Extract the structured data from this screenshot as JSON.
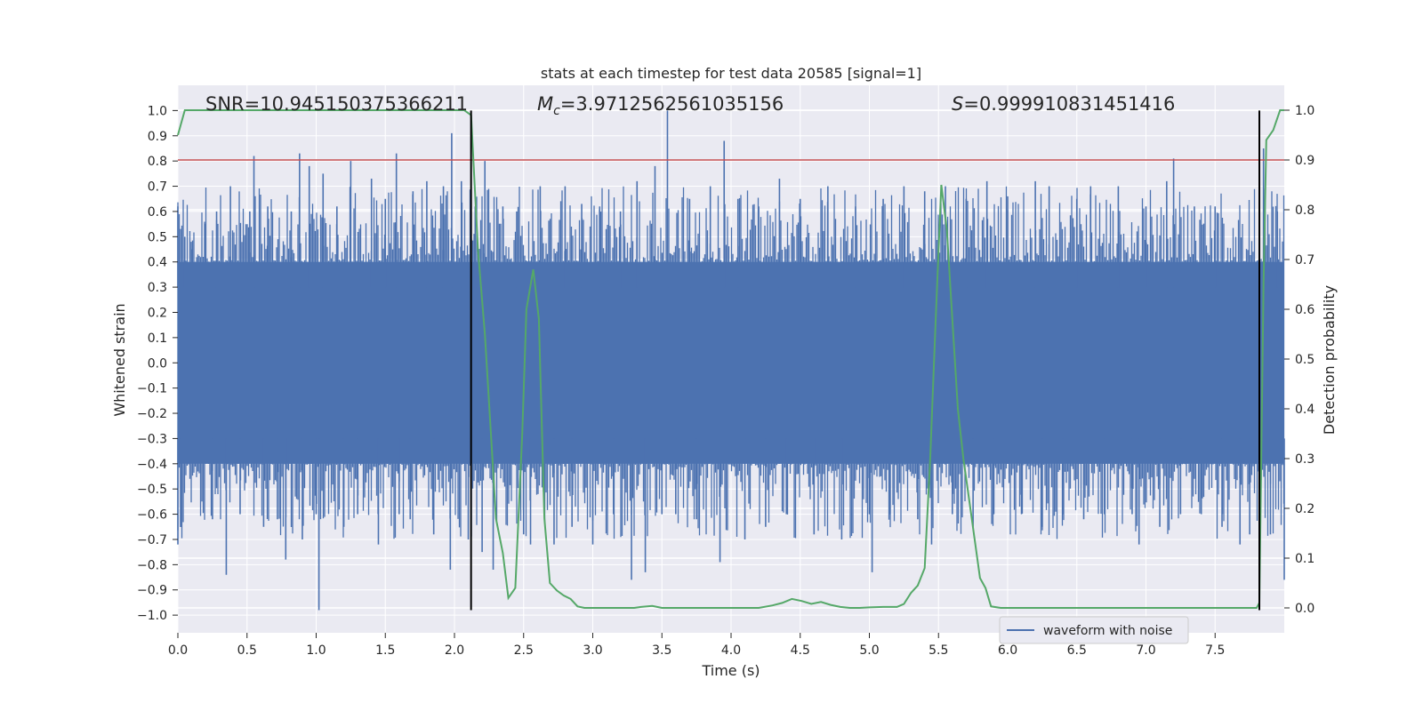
{
  "chart_data": {
    "type": "line",
    "title": "stats at each timestep for test data 20585 [signal=1]",
    "xlabel": "Time (s)",
    "ylabel": "Whitened strain",
    "y2label": "Detection probability",
    "xlim": [
      0.0,
      8.0
    ],
    "ylim": [
      -1.07,
      1.1
    ],
    "y2lim": [
      -0.05,
      1.05
    ],
    "xticks": [
      0.0,
      0.5,
      1.0,
      1.5,
      2.0,
      2.5,
      3.0,
      3.5,
      4.0,
      4.5,
      5.0,
      5.5,
      6.0,
      6.5,
      7.0,
      7.5
    ],
    "xtick_labels": [
      "0.0",
      "0.5",
      "1.0",
      "1.5",
      "2.0",
      "2.5",
      "3.0",
      "3.5",
      "4.0",
      "4.5",
      "5.0",
      "5.5",
      "6.0",
      "6.5",
      "7.0",
      "7.5"
    ],
    "yticks": [
      1.0,
      0.9,
      0.8,
      0.7,
      0.6,
      0.5,
      0.4,
      0.3,
      0.2,
      0.1,
      0.0,
      -0.1,
      -0.2,
      -0.3,
      -0.4,
      -0.5,
      -0.6,
      -0.7,
      -0.8,
      -0.9,
      -1.0
    ],
    "ytick_labels": [
      "1.0",
      "0.9",
      "0.8",
      "0.7",
      "0.6",
      "0.5",
      "0.4",
      "0.3",
      "0.2",
      "0.1",
      "0.0",
      "−0.1",
      "−0.2",
      "−0.3",
      "−0.4",
      "−0.5",
      "−0.6",
      "−0.7",
      "−0.8",
      "−0.9",
      "−1.0"
    ],
    "y2ticks": [
      1.0,
      0.9,
      0.8,
      0.7,
      0.6,
      0.5,
      0.4,
      0.3,
      0.2,
      0.1,
      0.0
    ],
    "y2tick_labels": [
      "1.0",
      "0.9",
      "0.8",
      "0.7",
      "0.6",
      "0.5",
      "0.4",
      "0.3",
      "0.2",
      "0.1",
      "0.0"
    ],
    "annotations": {
      "snr": "SNR=10.945150375366211",
      "mc_symbol": "M",
      "mc_sub": "c",
      "mc_value": "=3.9712562561035156",
      "s_symbol": "S",
      "s_value": "=0.999910831451416"
    },
    "threshold": {
      "y2": 0.9,
      "color": "#c44e52"
    },
    "vlines": [
      {
        "x": 2.12,
        "ymin": -0.98,
        "ymax": 1.0,
        "color": "#000000"
      },
      {
        "x": 7.82,
        "ymin": -0.98,
        "ymax": 1.0,
        "color": "#000000"
      }
    ],
    "legend": {
      "label": "waveform with noise",
      "placement": "lower-right"
    },
    "colors": {
      "background": "#eaeaf2",
      "waveform": "#4c72b0",
      "probability": "#55a868",
      "grid": "#ffffff"
    },
    "waveform": {
      "name": "waveform with noise",
      "t_range": [
        0.0,
        8.0
      ],
      "envelope_top": 0.4,
      "envelope_bottom": -0.4,
      "spikes": [
        [
          0.0,
          0.62
        ],
        [
          0.0,
          -0.72
        ],
        [
          0.02,
          -0.65
        ],
        [
          0.05,
          0.5
        ],
        [
          0.1,
          0.45
        ],
        [
          0.2,
          0.55
        ],
        [
          0.25,
          -0.62
        ],
        [
          0.28,
          0.6
        ],
        [
          0.35,
          -0.84
        ],
        [
          0.38,
          0.7
        ],
        [
          0.45,
          -0.6
        ],
        [
          0.52,
          0.6
        ],
        [
          0.55,
          0.82
        ],
        [
          0.62,
          -0.65
        ],
        [
          0.65,
          0.62
        ],
        [
          0.72,
          -0.62
        ],
        [
          0.78,
          -0.78
        ],
        [
          0.82,
          0.6
        ],
        [
          0.88,
          0.83
        ],
        [
          0.9,
          -0.7
        ],
        [
          0.95,
          0.78
        ],
        [
          1.0,
          -0.6
        ],
        [
          1.02,
          -0.98
        ],
        [
          1.05,
          0.75
        ],
        [
          1.15,
          0.62
        ],
        [
          1.2,
          -0.65
        ],
        [
          1.25,
          0.8
        ],
        [
          1.3,
          -0.6
        ],
        [
          1.4,
          0.73
        ],
        [
          1.45,
          -0.72
        ],
        [
          1.5,
          0.65
        ],
        [
          1.58,
          0.83
        ],
        [
          1.6,
          -0.6
        ],
        [
          1.68,
          -0.62
        ],
        [
          1.7,
          0.68
        ],
        [
          1.8,
          0.72
        ],
        [
          1.85,
          -0.68
        ],
        [
          1.92,
          0.7
        ],
        [
          1.97,
          -0.82
        ],
        [
          1.98,
          0.91
        ],
        [
          2.05,
          0.72
        ],
        [
          2.1,
          -0.7
        ],
        [
          2.15,
          0.62
        ],
        [
          2.2,
          -0.75
        ],
        [
          2.22,
          0.8
        ],
        [
          2.28,
          -0.82
        ],
        [
          2.35,
          0.62
        ],
        [
          2.45,
          0.6
        ],
        [
          2.5,
          -0.68
        ],
        [
          2.55,
          -0.72
        ],
        [
          2.62,
          0.7
        ],
        [
          2.65,
          -0.6
        ],
        [
          2.72,
          -0.72
        ],
        [
          2.8,
          0.7
        ],
        [
          2.85,
          -0.65
        ],
        [
          2.92,
          0.63
        ],
        [
          3.0,
          -0.72
        ],
        [
          3.05,
          0.62
        ],
        [
          3.15,
          -0.6
        ],
        [
          3.2,
          0.6
        ],
        [
          3.28,
          -0.86
        ],
        [
          3.32,
          0.72
        ],
        [
          3.38,
          -0.83
        ],
        [
          3.45,
          0.78
        ],
        [
          3.5,
          -0.6
        ],
        [
          3.54,
          1.0
        ],
        [
          3.6,
          -0.6
        ],
        [
          3.7,
          0.65
        ],
        [
          3.75,
          -0.62
        ],
        [
          3.85,
          0.7
        ],
        [
          3.92,
          -0.79
        ],
        [
          3.95,
          0.88
        ],
        [
          4.05,
          0.65
        ],
        [
          4.1,
          -0.7
        ],
        [
          4.2,
          0.62
        ],
        [
          4.25,
          -0.65
        ],
        [
          4.35,
          0.73
        ],
        [
          4.4,
          -0.6
        ],
        [
          4.5,
          0.65
        ],
        [
          4.6,
          -0.68
        ],
        [
          4.7,
          0.7
        ],
        [
          4.8,
          -0.7
        ],
        [
          4.9,
          0.62
        ],
        [
          5.0,
          -0.6
        ],
        [
          5.02,
          -0.83
        ],
        [
          5.1,
          0.65
        ],
        [
          5.15,
          -0.6
        ],
        [
          5.25,
          0.7
        ],
        [
          5.35,
          -0.62
        ],
        [
          5.4,
          0.68
        ],
        [
          5.45,
          -0.72
        ],
        [
          5.55,
          0.7
        ],
        [
          5.6,
          -0.6
        ],
        [
          5.7,
          0.65
        ],
        [
          5.75,
          -0.65
        ],
        [
          5.85,
          0.72
        ],
        [
          5.9,
          -0.6
        ],
        [
          6.0,
          0.66
        ],
        [
          6.1,
          -0.6
        ],
        [
          6.2,
          0.72
        ],
        [
          6.25,
          -0.65
        ],
        [
          6.3,
          0.7
        ],
        [
          6.4,
          -0.6
        ],
        [
          6.5,
          0.65
        ],
        [
          6.55,
          -0.62
        ],
        [
          6.6,
          0.7
        ],
        [
          6.7,
          -0.6
        ],
        [
          6.8,
          0.7
        ],
        [
          6.9,
          -0.6
        ],
        [
          6.95,
          -0.72
        ],
        [
          7.0,
          0.62
        ],
        [
          7.1,
          -0.65
        ],
        [
          7.15,
          0.72
        ],
        [
          7.2,
          0.81
        ],
        [
          7.25,
          -0.6
        ],
        [
          7.35,
          0.62
        ],
        [
          7.4,
          -0.6
        ],
        [
          7.5,
          0.62
        ],
        [
          7.55,
          -0.65
        ],
        [
          7.68,
          -0.72
        ],
        [
          7.75,
          -0.68
        ],
        [
          7.85,
          0.85
        ],
        [
          7.9,
          -0.68
        ],
        [
          7.95,
          0.6
        ],
        [
          8.0,
          -0.86
        ]
      ]
    },
    "probability": {
      "name": "Detection probability",
      "x": [
        0.0,
        0.05,
        0.1,
        0.3,
        0.5,
        1.0,
        1.5,
        1.8,
        2.0,
        2.07,
        2.12,
        2.17,
        2.22,
        2.27,
        2.3,
        2.35,
        2.39,
        2.44,
        2.49,
        2.52,
        2.57,
        2.61,
        2.65,
        2.69,
        2.74,
        2.79,
        2.84,
        2.89,
        2.94,
        3.0,
        3.1,
        3.2,
        3.3,
        3.35,
        3.43,
        3.5,
        3.6,
        3.7,
        3.8,
        3.9,
        4.0,
        4.1,
        4.2,
        4.3,
        4.37,
        4.44,
        4.51,
        4.58,
        4.65,
        4.72,
        4.79,
        4.86,
        4.93,
        5.0,
        5.1,
        5.2,
        5.25,
        5.3,
        5.35,
        5.4,
        5.44,
        5.48,
        5.52,
        5.56,
        5.6,
        5.64,
        5.68,
        5.72,
        5.76,
        5.8,
        5.84,
        5.88,
        5.95,
        6.1,
        6.3,
        6.5,
        6.7,
        6.9,
        7.1,
        7.3,
        7.5,
        7.6,
        7.7,
        7.75,
        7.8,
        7.82,
        7.85,
        7.87,
        7.92,
        7.97,
        8.0
      ],
      "y": [
        0.95,
        1.0,
        1.0,
        1.0,
        1.0,
        1.0,
        1.0,
        1.0,
        1.0,
        1.0,
        0.99,
        0.72,
        0.55,
        0.32,
        0.18,
        0.11,
        0.02,
        0.04,
        0.35,
        0.6,
        0.68,
        0.58,
        0.18,
        0.05,
        0.035,
        0.025,
        0.018,
        0.003,
        0.0,
        0.0,
        0.0,
        0.0,
        0.0,
        0.002,
        0.004,
        0.0,
        0.0,
        0.0,
        0.0,
        0.0,
        0.0,
        0.0,
        0.0,
        0.005,
        0.01,
        0.018,
        0.014,
        0.008,
        0.012,
        0.006,
        0.002,
        0.0,
        0.0,
        0.001,
        0.002,
        0.002,
        0.008,
        0.03,
        0.045,
        0.08,
        0.3,
        0.58,
        0.85,
        0.76,
        0.58,
        0.4,
        0.3,
        0.22,
        0.14,
        0.06,
        0.04,
        0.003,
        0.0,
        0.0,
        0.0,
        0.0,
        0.0,
        0.0,
        0.0,
        0.0,
        0.0,
        0.0,
        0.0,
        0.0,
        0.0,
        0.01,
        0.65,
        0.94,
        0.96,
        1.0,
        1.0
      ]
    }
  }
}
